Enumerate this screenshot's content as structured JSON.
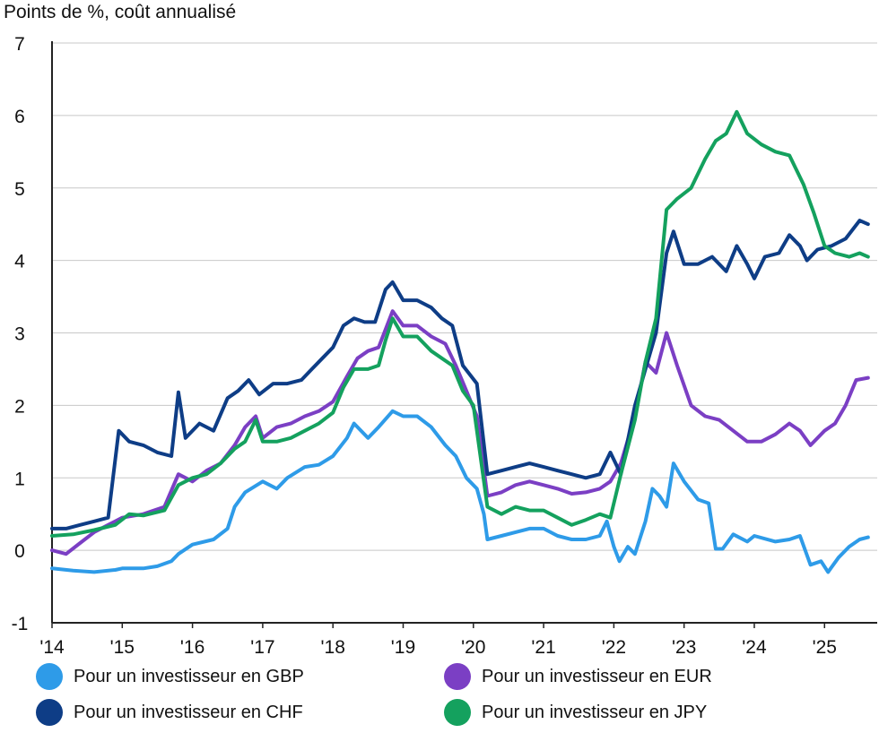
{
  "chart_data": {
    "type": "line",
    "title": "",
    "unit_label": "Points de %, coût annualisé",
    "xlabel": "",
    "ylabel": "Points de %, coût annualisé",
    "ylim": [
      -1,
      7
    ],
    "xlim": [
      2014.0,
      2025.75
    ],
    "yticks": [
      -1,
      0,
      1,
      2,
      3,
      4,
      5,
      6,
      7
    ],
    "xticks": [
      {
        "value": 2014,
        "label": "'14"
      },
      {
        "value": 2015,
        "label": "'15"
      },
      {
        "value": 2016,
        "label": "'16"
      },
      {
        "value": 2017,
        "label": "'17"
      },
      {
        "value": 2018,
        "label": "'18"
      },
      {
        "value": 2019,
        "label": "'19"
      },
      {
        "value": 2020,
        "label": "'20"
      },
      {
        "value": 2021,
        "label": "'21"
      },
      {
        "value": 2022,
        "label": "'22"
      },
      {
        "value": 2023,
        "label": "'23"
      },
      {
        "value": 2024,
        "label": "'24"
      },
      {
        "value": 2025,
        "label": "'25"
      }
    ],
    "grid": true,
    "legend_position": "bottom",
    "series": [
      {
        "name": "Pour un investisseur en GBP",
        "color": "#2e9be8",
        "points": [
          [
            2014.0,
            -0.25
          ],
          [
            2014.3,
            -0.28
          ],
          [
            2014.6,
            -0.3
          ],
          [
            2014.9,
            -0.27
          ],
          [
            2015.0,
            -0.25
          ],
          [
            2015.3,
            -0.25
          ],
          [
            2015.5,
            -0.22
          ],
          [
            2015.7,
            -0.15
          ],
          [
            2015.8,
            -0.05
          ],
          [
            2016.0,
            0.08
          ],
          [
            2016.3,
            0.15
          ],
          [
            2016.5,
            0.3
          ],
          [
            2016.6,
            0.6
          ],
          [
            2016.75,
            0.8
          ],
          [
            2017.0,
            0.95
          ],
          [
            2017.2,
            0.85
          ],
          [
            2017.35,
            1.0
          ],
          [
            2017.6,
            1.15
          ],
          [
            2017.8,
            1.18
          ],
          [
            2018.0,
            1.3
          ],
          [
            2018.2,
            1.55
          ],
          [
            2018.3,
            1.75
          ],
          [
            2018.5,
            1.55
          ],
          [
            2018.65,
            1.7
          ],
          [
            2018.85,
            1.92
          ],
          [
            2019.0,
            1.85
          ],
          [
            2019.2,
            1.85
          ],
          [
            2019.4,
            1.7
          ],
          [
            2019.6,
            1.45
          ],
          [
            2019.75,
            1.3
          ],
          [
            2019.9,
            1.0
          ],
          [
            2020.05,
            0.85
          ],
          [
            2020.15,
            0.5
          ],
          [
            2020.2,
            0.15
          ],
          [
            2020.4,
            0.2
          ],
          [
            2020.6,
            0.25
          ],
          [
            2020.8,
            0.3
          ],
          [
            2021.0,
            0.3
          ],
          [
            2021.2,
            0.2
          ],
          [
            2021.4,
            0.15
          ],
          [
            2021.6,
            0.15
          ],
          [
            2021.8,
            0.2
          ],
          [
            2021.9,
            0.4
          ],
          [
            2022.0,
            0.05
          ],
          [
            2022.08,
            -0.15
          ],
          [
            2022.2,
            0.05
          ],
          [
            2022.3,
            -0.05
          ],
          [
            2022.45,
            0.4
          ],
          [
            2022.55,
            0.85
          ],
          [
            2022.65,
            0.75
          ],
          [
            2022.75,
            0.6
          ],
          [
            2022.85,
            1.2
          ],
          [
            2023.0,
            0.95
          ],
          [
            2023.2,
            0.7
          ],
          [
            2023.35,
            0.65
          ],
          [
            2023.45,
            0.02
          ],
          [
            2023.55,
            0.02
          ],
          [
            2023.7,
            0.22
          ],
          [
            2023.9,
            0.12
          ],
          [
            2024.0,
            0.2
          ],
          [
            2024.3,
            0.12
          ],
          [
            2024.5,
            0.15
          ],
          [
            2024.65,
            0.2
          ],
          [
            2024.8,
            -0.2
          ],
          [
            2024.95,
            -0.15
          ],
          [
            2025.05,
            -0.3
          ],
          [
            2025.2,
            -0.1
          ],
          [
            2025.35,
            0.05
          ],
          [
            2025.5,
            0.15
          ],
          [
            2025.62,
            0.18
          ]
        ]
      },
      {
        "name": "Pour un investisseur en EUR",
        "color": "#7b3fc4",
        "points": [
          [
            2014.0,
            0.0
          ],
          [
            2014.2,
            -0.05
          ],
          [
            2014.4,
            0.1
          ],
          [
            2014.6,
            0.25
          ],
          [
            2014.8,
            0.35
          ],
          [
            2015.0,
            0.45
          ],
          [
            2015.3,
            0.5
          ],
          [
            2015.6,
            0.6
          ],
          [
            2015.8,
            1.05
          ],
          [
            2016.0,
            0.95
          ],
          [
            2016.2,
            1.1
          ],
          [
            2016.4,
            1.2
          ],
          [
            2016.6,
            1.45
          ],
          [
            2016.75,
            1.7
          ],
          [
            2016.9,
            1.85
          ],
          [
            2017.0,
            1.55
          ],
          [
            2017.2,
            1.7
          ],
          [
            2017.4,
            1.75
          ],
          [
            2017.6,
            1.85
          ],
          [
            2017.8,
            1.92
          ],
          [
            2018.0,
            2.05
          ],
          [
            2018.2,
            2.4
          ],
          [
            2018.35,
            2.65
          ],
          [
            2018.5,
            2.75
          ],
          [
            2018.65,
            2.8
          ],
          [
            2018.75,
            3.05
          ],
          [
            2018.85,
            3.3
          ],
          [
            2019.0,
            3.1
          ],
          [
            2019.2,
            3.1
          ],
          [
            2019.4,
            2.95
          ],
          [
            2019.6,
            2.85
          ],
          [
            2019.75,
            2.55
          ],
          [
            2019.9,
            2.2
          ],
          [
            2020.05,
            1.85
          ],
          [
            2020.2,
            0.75
          ],
          [
            2020.4,
            0.8
          ],
          [
            2020.6,
            0.9
          ],
          [
            2020.8,
            0.95
          ],
          [
            2021.0,
            0.9
          ],
          [
            2021.2,
            0.85
          ],
          [
            2021.4,
            0.78
          ],
          [
            2021.6,
            0.8
          ],
          [
            2021.8,
            0.85
          ],
          [
            2021.95,
            0.95
          ],
          [
            2022.1,
            1.2
          ],
          [
            2022.3,
            1.85
          ],
          [
            2022.45,
            2.6
          ],
          [
            2022.6,
            2.45
          ],
          [
            2022.75,
            3.0
          ],
          [
            2022.9,
            2.55
          ],
          [
            2023.1,
            2.0
          ],
          [
            2023.3,
            1.85
          ],
          [
            2023.5,
            1.8
          ],
          [
            2023.7,
            1.65
          ],
          [
            2023.9,
            1.5
          ],
          [
            2024.1,
            1.5
          ],
          [
            2024.3,
            1.6
          ],
          [
            2024.5,
            1.75
          ],
          [
            2024.65,
            1.65
          ],
          [
            2024.8,
            1.45
          ],
          [
            2025.0,
            1.65
          ],
          [
            2025.15,
            1.75
          ],
          [
            2025.3,
            2.0
          ],
          [
            2025.45,
            2.35
          ],
          [
            2025.62,
            2.38
          ]
        ]
      },
      {
        "name": "Pour un investisseur en CHF",
        "color": "#0e3d86",
        "points": [
          [
            2014.0,
            0.3
          ],
          [
            2014.2,
            0.3
          ],
          [
            2014.4,
            0.35
          ],
          [
            2014.6,
            0.4
          ],
          [
            2014.8,
            0.45
          ],
          [
            2014.95,
            1.65
          ],
          [
            2015.1,
            1.5
          ],
          [
            2015.3,
            1.45
          ],
          [
            2015.5,
            1.35
          ],
          [
            2015.7,
            1.3
          ],
          [
            2015.8,
            2.18
          ],
          [
            2015.9,
            1.55
          ],
          [
            2016.1,
            1.75
          ],
          [
            2016.3,
            1.65
          ],
          [
            2016.5,
            2.1
          ],
          [
            2016.65,
            2.2
          ],
          [
            2016.8,
            2.35
          ],
          [
            2016.95,
            2.15
          ],
          [
            2017.15,
            2.3
          ],
          [
            2017.35,
            2.3
          ],
          [
            2017.55,
            2.35
          ],
          [
            2017.7,
            2.5
          ],
          [
            2017.85,
            2.65
          ],
          [
            2018.0,
            2.8
          ],
          [
            2018.15,
            3.1
          ],
          [
            2018.3,
            3.2
          ],
          [
            2018.45,
            3.15
          ],
          [
            2018.6,
            3.15
          ],
          [
            2018.75,
            3.6
          ],
          [
            2018.85,
            3.7
          ],
          [
            2019.0,
            3.45
          ],
          [
            2019.2,
            3.45
          ],
          [
            2019.4,
            3.35
          ],
          [
            2019.55,
            3.2
          ],
          [
            2019.7,
            3.1
          ],
          [
            2019.85,
            2.55
          ],
          [
            2020.05,
            2.3
          ],
          [
            2020.2,
            1.05
          ],
          [
            2020.4,
            1.1
          ],
          [
            2020.6,
            1.15
          ],
          [
            2020.8,
            1.2
          ],
          [
            2021.0,
            1.15
          ],
          [
            2021.2,
            1.1
          ],
          [
            2021.4,
            1.05
          ],
          [
            2021.6,
            1.0
          ],
          [
            2021.8,
            1.05
          ],
          [
            2021.95,
            1.35
          ],
          [
            2022.1,
            1.05
          ],
          [
            2022.3,
            2.0
          ],
          [
            2022.45,
            2.5
          ],
          [
            2022.6,
            3.0
          ],
          [
            2022.75,
            4.1
          ],
          [
            2022.85,
            4.4
          ],
          [
            2023.0,
            3.95
          ],
          [
            2023.2,
            3.95
          ],
          [
            2023.4,
            4.05
          ],
          [
            2023.6,
            3.85
          ],
          [
            2023.75,
            4.2
          ],
          [
            2023.9,
            3.95
          ],
          [
            2024.0,
            3.75
          ],
          [
            2024.15,
            4.05
          ],
          [
            2024.35,
            4.1
          ],
          [
            2024.5,
            4.35
          ],
          [
            2024.65,
            4.2
          ],
          [
            2024.75,
            4.0
          ],
          [
            2024.9,
            4.15
          ],
          [
            2025.1,
            4.2
          ],
          [
            2025.3,
            4.3
          ],
          [
            2025.5,
            4.55
          ],
          [
            2025.62,
            4.5
          ]
        ]
      },
      {
        "name": "Pour un investisseur en JPY",
        "color": "#14a15e",
        "points": [
          [
            2014.0,
            0.2
          ],
          [
            2014.3,
            0.22
          ],
          [
            2014.6,
            0.28
          ],
          [
            2014.9,
            0.35
          ],
          [
            2015.1,
            0.5
          ],
          [
            2015.3,
            0.48
          ],
          [
            2015.6,
            0.55
          ],
          [
            2015.8,
            0.9
          ],
          [
            2016.0,
            1.0
          ],
          [
            2016.2,
            1.05
          ],
          [
            2016.4,
            1.2
          ],
          [
            2016.6,
            1.4
          ],
          [
            2016.75,
            1.5
          ],
          [
            2016.9,
            1.8
          ],
          [
            2017.0,
            1.5
          ],
          [
            2017.2,
            1.5
          ],
          [
            2017.4,
            1.55
          ],
          [
            2017.6,
            1.65
          ],
          [
            2017.8,
            1.75
          ],
          [
            2018.0,
            1.9
          ],
          [
            2018.15,
            2.25
          ],
          [
            2018.3,
            2.5
          ],
          [
            2018.5,
            2.5
          ],
          [
            2018.65,
            2.55
          ],
          [
            2018.75,
            2.9
          ],
          [
            2018.85,
            3.2
          ],
          [
            2019.0,
            2.95
          ],
          [
            2019.2,
            2.95
          ],
          [
            2019.4,
            2.75
          ],
          [
            2019.55,
            2.65
          ],
          [
            2019.7,
            2.55
          ],
          [
            2019.85,
            2.2
          ],
          [
            2020.0,
            2.0
          ],
          [
            2020.2,
            0.6
          ],
          [
            2020.4,
            0.5
          ],
          [
            2020.6,
            0.6
          ],
          [
            2020.8,
            0.55
          ],
          [
            2021.0,
            0.55
          ],
          [
            2021.2,
            0.45
          ],
          [
            2021.4,
            0.35
          ],
          [
            2021.6,
            0.42
          ],
          [
            2021.8,
            0.5
          ],
          [
            2021.95,
            0.45
          ],
          [
            2022.1,
            1.05
          ],
          [
            2022.3,
            1.8
          ],
          [
            2022.45,
            2.6
          ],
          [
            2022.6,
            3.2
          ],
          [
            2022.75,
            4.7
          ],
          [
            2022.9,
            4.85
          ],
          [
            2023.1,
            5.0
          ],
          [
            2023.3,
            5.4
          ],
          [
            2023.45,
            5.65
          ],
          [
            2023.6,
            5.75
          ],
          [
            2023.75,
            6.05
          ],
          [
            2023.9,
            5.75
          ],
          [
            2024.1,
            5.6
          ],
          [
            2024.3,
            5.5
          ],
          [
            2024.5,
            5.45
          ],
          [
            2024.7,
            5.05
          ],
          [
            2024.85,
            4.65
          ],
          [
            2025.0,
            4.2
          ],
          [
            2025.15,
            4.1
          ],
          [
            2025.35,
            4.05
          ],
          [
            2025.5,
            4.1
          ],
          [
            2025.62,
            4.05
          ]
        ]
      }
    ]
  }
}
